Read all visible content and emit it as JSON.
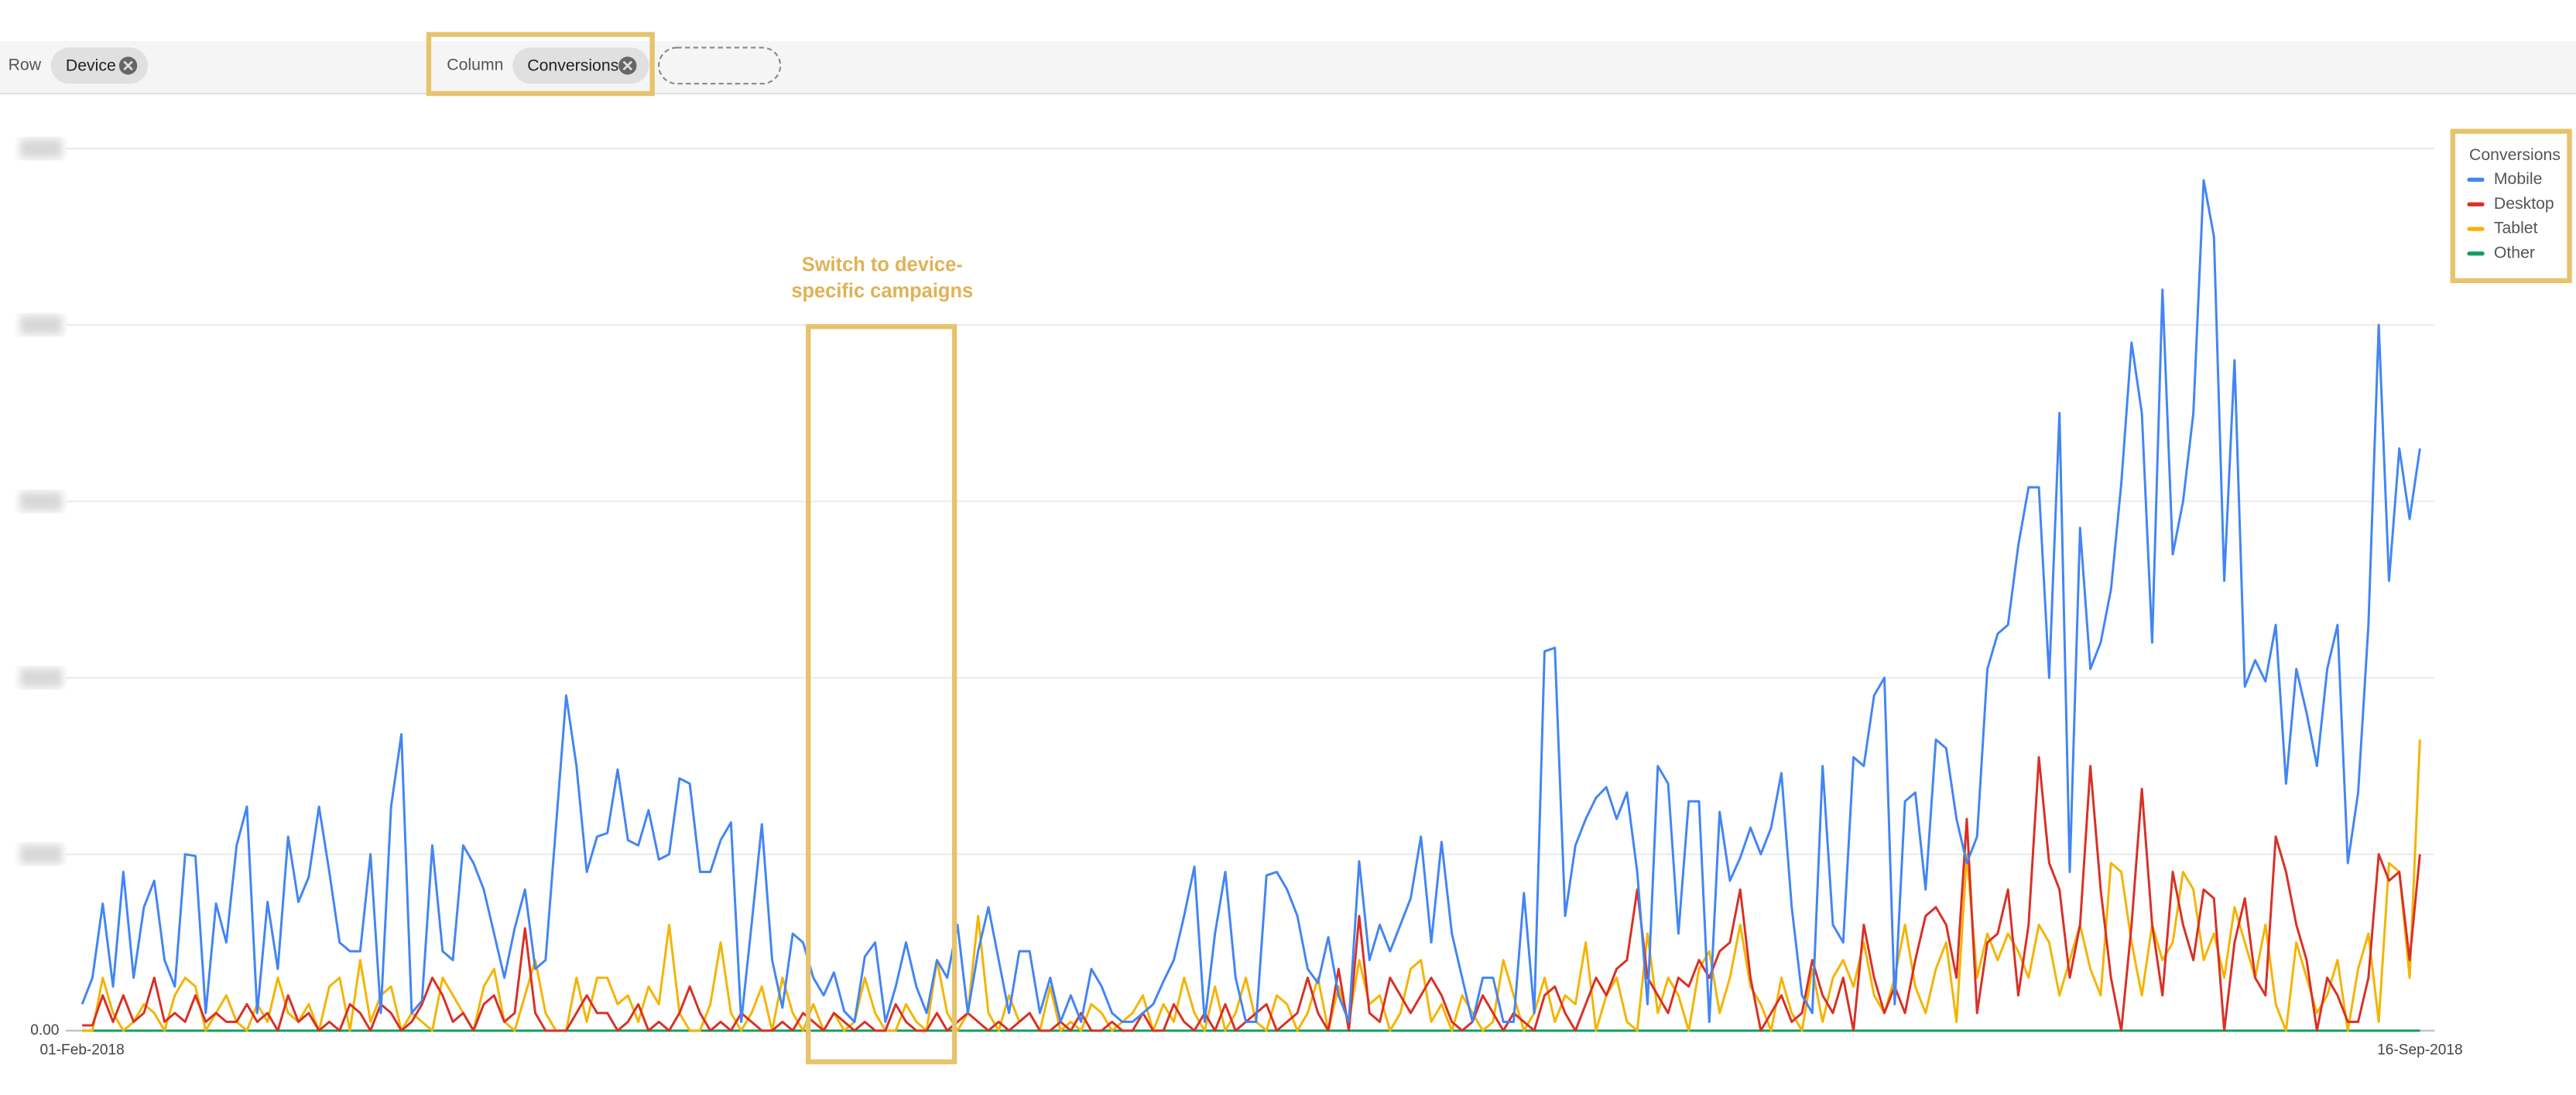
{
  "toolbar": {
    "row_label": "Row",
    "row_chip": "Device",
    "column_label": "Column",
    "column_chip": "Conversions"
  },
  "chart_data": {
    "type": "line",
    "annotation": [
      "Switch to device-",
      "specific campaigns"
    ],
    "legend_title": "Conversions",
    "legend": "right",
    "categories": [
      "01-Feb-2018",
      null,
      null,
      null,
      null,
      null,
      null,
      null,
      null,
      null,
      null,
      null,
      null,
      null,
      null,
      null,
      null,
      null,
      null,
      null,
      null,
      null,
      null,
      null,
      null,
      null,
      null,
      null,
      null,
      null,
      null,
      null,
      null,
      null,
      null,
      null,
      null,
      null,
      null,
      null,
      null,
      null,
      null,
      null,
      null,
      null,
      null,
      null,
      null,
      null,
      null,
      null,
      null,
      null,
      null,
      null,
      null,
      null,
      null,
      null,
      null,
      null,
      null,
      null,
      null,
      null,
      null,
      null,
      null,
      null,
      null,
      null,
      null,
      null,
      null,
      null,
      null,
      null,
      null,
      null,
      null,
      null,
      null,
      null,
      null,
      null,
      null,
      null,
      null,
      null,
      null,
      null,
      null,
      null,
      null,
      null,
      null,
      null,
      null,
      null,
      null,
      null,
      null,
      null,
      null,
      null,
      null,
      null,
      null,
      null,
      null,
      null,
      null,
      null,
      null,
      null,
      null,
      null,
      null,
      null,
      null,
      null,
      null,
      null,
      null,
      null,
      null,
      null,
      null,
      null,
      null,
      null,
      null,
      null,
      null,
      null,
      null,
      null,
      null,
      null,
      null,
      null,
      null,
      null,
      null,
      null,
      null,
      null,
      null,
      null,
      null,
      null,
      null,
      null,
      null,
      null,
      null,
      null,
      null,
      null,
      null,
      null,
      null,
      null,
      null,
      null,
      null,
      null,
      null,
      null,
      null,
      null,
      null,
      null,
      null,
      null,
      null,
      null,
      null,
      null,
      null,
      null,
      null,
      null,
      null,
      null,
      null,
      null,
      null,
      null,
      null,
      null,
      null,
      null,
      null,
      null,
      null,
      null,
      null,
      null,
      null,
      null,
      null,
      null,
      null,
      null,
      null,
      null,
      null,
      null,
      null,
      null,
      null,
      null,
      null,
      null,
      null,
      null,
      null,
      null,
      null,
      null,
      null,
      null,
      null,
      null,
      null,
      "16-Sep-2018"
    ],
    "ylim": [
      0,
      5
    ],
    "yticks": [
      {
        "value": 0,
        "label": "0.00"
      },
      {
        "value": 1,
        "label": null
      },
      {
        "value": 2,
        "label": null
      },
      {
        "value": 3,
        "label": null
      },
      {
        "value": 4,
        "label": null
      },
      {
        "value": 5,
        "label": null
      }
    ],
    "grid": true,
    "series": [
      {
        "name": "Mobile",
        "color": "#4285f4",
        "values": [
          0.15,
          0.3,
          0.72,
          0.25,
          0.9,
          0.3,
          0.7,
          0.85,
          0.4,
          0.25,
          1.0,
          0.99,
          0.1,
          0.72,
          0.5,
          1.05,
          1.27,
          0.1,
          0.73,
          0.35,
          1.1,
          0.73,
          0.87,
          1.27,
          0.9,
          0.5,
          0.45,
          0.45,
          1.0,
          0.1,
          1.27,
          1.68,
          0.1,
          0.17,
          1.05,
          0.45,
          0.4,
          1.05,
          0.95,
          0.8,
          0.55,
          0.3,
          0.58,
          0.8,
          0.35,
          0.4,
          1.15,
          1.9,
          1.5,
          0.9,
          1.1,
          1.12,
          1.48,
          1.08,
          1.05,
          1.25,
          0.97,
          1.0,
          1.43,
          1.4,
          0.9,
          0.9,
          1.08,
          1.18,
          0.05,
          0.6,
          1.17,
          0.4,
          0.13,
          0.55,
          0.5,
          0.3,
          0.2,
          0.33,
          0.11,
          0.05,
          0.42,
          0.5,
          0.05,
          0.25,
          0.5,
          0.25,
          0.1,
          0.4,
          0.3,
          0.6,
          0.1,
          0.45,
          0.7,
          0.4,
          0.1,
          0.45,
          0.45,
          0.1,
          0.3,
          0.05,
          0.2,
          0.05,
          0.35,
          0.25,
          0.1,
          0.05,
          0.05,
          0.1,
          0.15,
          0.28,
          0.4,
          0.65,
          0.93,
          0.05,
          0.55,
          0.9,
          0.3,
          0.05,
          0.05,
          0.88,
          0.9,
          0.8,
          0.65,
          0.35,
          0.27,
          0.53,
          0.2,
          0.05,
          0.96,
          0.4,
          0.6,
          0.45,
          0.6,
          0.75,
          1.1,
          0.5,
          1.07,
          0.55,
          0.3,
          0.05,
          0.3,
          0.3,
          0.05,
          0.05,
          0.78,
          0.1,
          2.15,
          2.17,
          0.65,
          1.05,
          1.2,
          1.32,
          1.38,
          1.2,
          1.35,
          0.9,
          0.15,
          1.5,
          1.4,
          0.55,
          1.3,
          1.3,
          0.05,
          1.24,
          0.85,
          0.98,
          1.15,
          1.0,
          1.15,
          1.46,
          0.7,
          0.2,
          0.1,
          1.5,
          0.6,
          0.5,
          1.55,
          1.5,
          1.9,
          2.0,
          0.15,
          1.3,
          1.35,
          0.8,
          1.65,
          1.6,
          1.2,
          0.95,
          1.1,
          2.05,
          2.25,
          2.3,
          2.75,
          3.08,
          3.08,
          2.0,
          3.5,
          0.9,
          2.85,
          2.05,
          2.2,
          2.5,
          3.1,
          3.9,
          3.5,
          2.2,
          4.2,
          2.7,
          3.0,
          3.5,
          4.82,
          4.5,
          2.55,
          3.8,
          1.95,
          2.1,
          1.98,
          2.3,
          1.4,
          2.05,
          1.8,
          1.5,
          2.05,
          2.3,
          0.95,
          1.35,
          2.3,
          4.0,
          2.55,
          3.3,
          2.9,
          3.3
        ]
      },
      {
        "name": "Desktop",
        "color": "#d93025",
        "values": [
          0.03,
          0.03,
          0.2,
          0.05,
          0.2,
          0.05,
          0.1,
          0.3,
          0.05,
          0.1,
          0.05,
          0.2,
          0.05,
          0.1,
          0.05,
          0.05,
          0.15,
          0.05,
          0.1,
          0,
          0.2,
          0.05,
          0.1,
          0,
          0.05,
          0,
          0.15,
          0.1,
          0,
          0.15,
          0.1,
          0,
          0.05,
          0.15,
          0.3,
          0.2,
          0.05,
          0.1,
          0,
          0.15,
          0.2,
          0.05,
          0.1,
          0.58,
          0.1,
          0,
          0,
          0,
          0.1,
          0.2,
          0.1,
          0.1,
          0,
          0.05,
          0.15,
          0,
          0.05,
          0,
          0.1,
          0.25,
          0.1,
          0,
          0.05,
          0,
          0.1,
          0.05,
          0,
          0,
          0.05,
          0,
          0.1,
          0.05,
          0,
          0.1,
          0.05,
          0,
          0.05,
          0,
          0,
          0.15,
          0.05,
          0,
          0,
          0.1,
          0,
          0.05,
          0.1,
          0.05,
          0,
          0.05,
          0,
          0.05,
          0.1,
          0,
          0,
          0.05,
          0,
          0.1,
          0,
          0,
          0.05,
          0,
          0,
          0.1,
          0,
          0,
          0.15,
          0.05,
          0,
          0.1,
          0,
          0.15,
          0,
          0.05,
          0.1,
          0.15,
          0,
          0.05,
          0.1,
          0.3,
          0.1,
          0,
          0.35,
          0,
          0.65,
          0.1,
          0.05,
          0.3,
          0.2,
          0.1,
          0.2,
          0.3,
          0.2,
          0.05,
          0,
          0.05,
          0.2,
          0.1,
          0,
          0.1,
          0.05,
          0,
          0.2,
          0.25,
          0.1,
          0,
          0.15,
          0.3,
          0.2,
          0.35,
          0.4,
          0.8,
          0.3,
          0.2,
          0.1,
          0.3,
          0.25,
          0.4,
          0.3,
          0.45,
          0.5,
          0.8,
          0.3,
          0,
          0.1,
          0.2,
          0.05,
          0.1,
          0.4,
          0.2,
          0.1,
          0.3,
          0,
          0.6,
          0.3,
          0.1,
          0.25,
          0.1,
          0.4,
          0.65,
          0.7,
          0.6,
          0.3,
          1.2,
          0.1,
          0.5,
          0.55,
          0.8,
          0.2,
          0.6,
          1.55,
          0.95,
          0.8,
          0.3,
          0.6,
          1.5,
          0.8,
          0.3,
          0,
          0.6,
          1.37,
          0.6,
          0.2,
          0.9,
          0.6,
          0.4,
          0.8,
          0.75,
          0,
          0.5,
          0.75,
          0.3,
          0.2,
          1.1,
          0.9,
          0.6,
          0.4,
          0,
          0.3,
          0.2,
          0.05,
          0.05,
          0.3,
          1.0,
          0.85,
          0.9,
          0.4,
          1.0
        ]
      },
      {
        "name": "Tablet",
        "color": "#f4b400",
        "values": [
          0,
          0,
          0.3,
          0.1,
          0,
          0.05,
          0.15,
          0.1,
          0,
          0.2,
          0.3,
          0.25,
          0,
          0.1,
          0.2,
          0.05,
          0,
          0.15,
          0.05,
          0.3,
          0.1,
          0.05,
          0.15,
          0,
          0.25,
          0.3,
          0,
          0.4,
          0.05,
          0.2,
          0.25,
          0,
          0.1,
          0.05,
          0,
          0.3,
          0.2,
          0.1,
          0,
          0.25,
          0.35,
          0.05,
          0,
          0.2,
          0.4,
          0.1,
          0,
          0,
          0.3,
          0.05,
          0.3,
          0.3,
          0.15,
          0.2,
          0.05,
          0.25,
          0.15,
          0.6,
          0.1,
          0,
          0,
          0.15,
          0.5,
          0.1,
          0,
          0.1,
          0.25,
          0,
          0.3,
          0.1,
          0,
          0.15,
          0,
          0.1,
          0,
          0.05,
          0.3,
          0.1,
          0,
          0,
          0.15,
          0.05,
          0,
          0.4,
          0.1,
          0,
          0.1,
          0.65,
          0.1,
          0,
          0.2,
          0.05,
          0.1,
          0,
          0.25,
          0,
          0.05,
          0,
          0.15,
          0.1,
          0,
          0.05,
          0.1,
          0.2,
          0,
          0.15,
          0.05,
          0.3,
          0.1,
          0,
          0.25,
          0,
          0.1,
          0.3,
          0.05,
          0,
          0.2,
          0.15,
          0,
          0.1,
          0.3,
          0,
          0.25,
          0.05,
          0.4,
          0.15,
          0.2,
          0,
          0.1,
          0.35,
          0.4,
          0.05,
          0.15,
          0,
          0.2,
          0.1,
          0,
          0.05,
          0.4,
          0.2,
          0,
          0.1,
          0.3,
          0.05,
          0.2,
          0.15,
          0.5,
          0,
          0.2,
          0.3,
          0.05,
          0,
          0.55,
          0.1,
          0.3,
          0.2,
          0,
          0.35,
          0.45,
          0.1,
          0.3,
          0.6,
          0.25,
          0.15,
          0,
          0.3,
          0.1,
          0,
          0.35,
          0.05,
          0.3,
          0.4,
          0.25,
          0.5,
          0.2,
          0.1,
          0.3,
          0.6,
          0.25,
          0.1,
          0.35,
          0.5,
          0.05,
          1.0,
          0.3,
          0.55,
          0.4,
          0.55,
          0.45,
          0.3,
          0.6,
          0.5,
          0.2,
          0.4,
          0.6,
          0.35,
          0.2,
          0.95,
          0.9,
          0.5,
          0.2,
          0.6,
          0.4,
          0.5,
          0.9,
          0.8,
          0.4,
          0.55,
          0.3,
          0.7,
          0.5,
          0.3,
          0.6,
          0.15,
          0,
          0.5,
          0.3,
          0.1,
          0.2,
          0.4,
          0,
          0.35,
          0.55,
          0.05,
          0.95,
          0.9,
          0.3,
          1.65
        ]
      },
      {
        "name": "Other",
        "color": "#0f9d58",
        "values": [
          0,
          0,
          0,
          0,
          0,
          0,
          0,
          0,
          0,
          0,
          0,
          0,
          0,
          0,
          0,
          0,
          0,
          0,
          0,
          0,
          0,
          0,
          0,
          0,
          0,
          0,
          0,
          0,
          0,
          0,
          0,
          0,
          0,
          0,
          0,
          0,
          0,
          0,
          0,
          0,
          0,
          0,
          0,
          0,
          0,
          0,
          0,
          0,
          0,
          0,
          0,
          0,
          0,
          0,
          0,
          0,
          0,
          0,
          0,
          0,
          0,
          0,
          0,
          0,
          0,
          0,
          0,
          0,
          0,
          0,
          0,
          0,
          0,
          0,
          0,
          0,
          0,
          0,
          0,
          0,
          0,
          0,
          0,
          0,
          0,
          0,
          0,
          0,
          0,
          0,
          0,
          0,
          0,
          0,
          0,
          0,
          0,
          0,
          0,
          0,
          0,
          0,
          0,
          0,
          0,
          0,
          0,
          0,
          0,
          0,
          0,
          0,
          0,
          0,
          0,
          0,
          0,
          0,
          0,
          0,
          0,
          0,
          0,
          0,
          0,
          0,
          0,
          0,
          0,
          0,
          0,
          0,
          0,
          0,
          0,
          0,
          0,
          0,
          0,
          0,
          0,
          0,
          0,
          0,
          0,
          0,
          0,
          0,
          0,
          0,
          0,
          0,
          0,
          0,
          0,
          0,
          0,
          0,
          0,
          0,
          0,
          0,
          0,
          0,
          0,
          0,
          0,
          0,
          0,
          0,
          0,
          0,
          0,
          0,
          0,
          0,
          0,
          0,
          0,
          0,
          0,
          0,
          0,
          0,
          0,
          0,
          0,
          0,
          0,
          0,
          0,
          0,
          0,
          0,
          0,
          0,
          0,
          0,
          0,
          0,
          0,
          0,
          0,
          0,
          0,
          0,
          0,
          0,
          0,
          0,
          0,
          0,
          0,
          0,
          0,
          0,
          0,
          0,
          0,
          0,
          0,
          0,
          0,
          0,
          0,
          0,
          0,
          0
        ]
      }
    ]
  }
}
